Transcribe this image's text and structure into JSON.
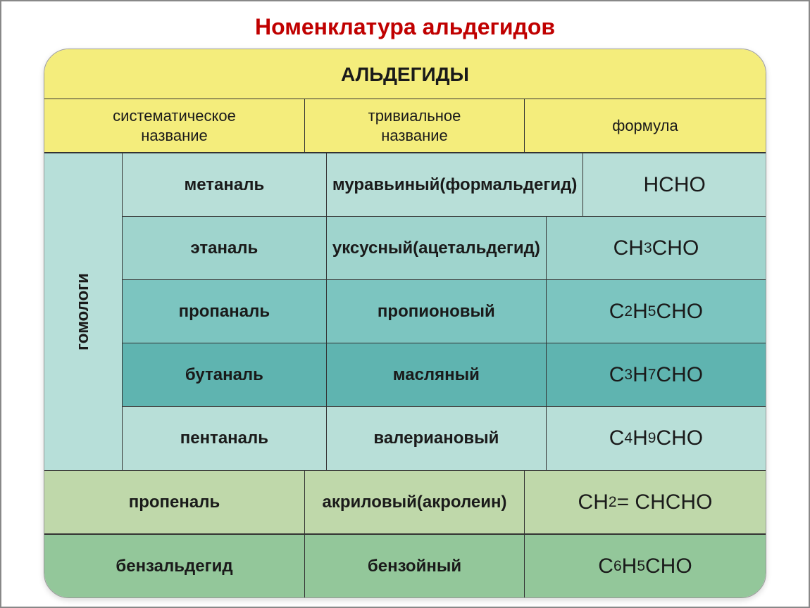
{
  "title": "Номенклатура альдегидов",
  "card": {
    "supertitle": "АЛЬДЕГИДЫ",
    "header_bg": "#f4ed7c",
    "headers": {
      "col1_line1": "систематическое",
      "col1_line2": "название",
      "col2_line1": "тривиальное",
      "col2_line2": "название",
      "col3": "формула"
    },
    "side_label": "гомологи",
    "side_label_bg": "#b7dfd9",
    "homologs": [
      {
        "systematic": "метаналь",
        "trivial_line1": "муравьиный",
        "trivial_line2": "(формальдегид)",
        "formula_html": "HCHO",
        "bg": "#b8dfd8"
      },
      {
        "systematic": "этаналь",
        "trivial_line1": "уксусный",
        "trivial_line2": "(ацетальдегид)",
        "formula_html": "CH<span class='sub'>3</span>CHO",
        "bg": "#9fd4cd"
      },
      {
        "systematic": "пропаналь",
        "trivial_line1": "пропионовый",
        "trivial_line2": "",
        "formula_html": "C<span class='sub'>2</span>H<span class='sub'>5</span>CHO",
        "bg": "#7cc5c0"
      },
      {
        "systematic": "бутаналь",
        "trivial_line1": "масляный",
        "trivial_line2": "",
        "formula_html": "C<span class='sub'>3</span>H<span class='sub'>7</span>CHO",
        "bg": "#5fb4b0"
      },
      {
        "systematic": "пентаналь",
        "trivial_line1": "валериановый",
        "trivial_line2": "",
        "formula_html": "C<span class='sub'>4</span>H<span class='sub'>9</span>CHO",
        "bg": "#b8dfd8"
      }
    ],
    "extras": [
      {
        "systematic": "пропеналь",
        "trivial_line1": "акриловый",
        "trivial_line2": "(акролеин)",
        "formula_html": "CH<span class='sub'>2</span> = CHCHO",
        "bg": "#bfd8aa"
      },
      {
        "systematic": "бензальдегид",
        "trivial_line1": "бензойный",
        "trivial_line2": "",
        "formula_html": "C<span class='sub'>6</span>H<span class='sub'>5</span>CHO",
        "bg": "#93c79a"
      }
    ]
  },
  "colors": {
    "title": "#c00000",
    "text": "#1a1a1a",
    "border": "#333333",
    "page_bg": "#ffffff"
  }
}
